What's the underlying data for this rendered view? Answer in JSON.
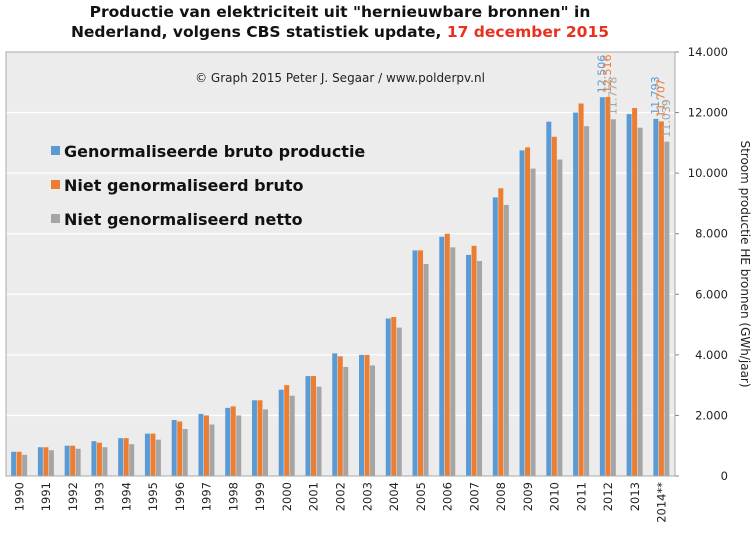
{
  "title": {
    "line1": "Productie van elektriciteit uit \"hernieuwbare bronnen\" in",
    "line2": "Nederland, volgens CBS statistiek update,",
    "date": "17 december 2015"
  },
  "credit": "© Graph 2015 Peter J. Segaar / www.polderpv.nl",
  "chart_data": {
    "type": "bar",
    "categories": [
      "1990",
      "1991",
      "1992",
      "1993",
      "1994",
      "1995",
      "1996",
      "1997",
      "1998",
      "1999",
      "2000",
      "2001",
      "2002",
      "2003",
      "2004",
      "2005",
      "2006",
      "2007",
      "2008",
      "2009",
      "2010",
      "2011",
      "2012",
      "2013",
      "2014**"
    ],
    "series": [
      {
        "name": "Genormaliseerde bruto productie",
        "color": "#5b9bd5",
        "values": [
          800,
          950,
          1000,
          1150,
          1250,
          1400,
          1850,
          2050,
          2250,
          2500,
          2850,
          3300,
          4050,
          4000,
          5200,
          7450,
          7900,
          7300,
          9200,
          10750,
          11700,
          12000,
          12506,
          11950,
          11793
        ]
      },
      {
        "name": "Niet genormaliseerd bruto",
        "color": "#ed7d31",
        "values": [
          800,
          950,
          1000,
          1100,
          1250,
          1400,
          1800,
          2000,
          2300,
          2500,
          3000,
          3300,
          3950,
          4000,
          5250,
          7450,
          8000,
          7600,
          9500,
          10850,
          11200,
          12300,
          12516,
          12150,
          11707
        ]
      },
      {
        "name": "Niet genormaliseerd netto",
        "color": "#a5a5a5",
        "values": [
          700,
          850,
          900,
          950,
          1050,
          1200,
          1550,
          1700,
          2000,
          2200,
          2650,
          2950,
          3600,
          3650,
          4900,
          7000,
          7550,
          7100,
          8950,
          10150,
          10450,
          11550,
          11778,
          11500,
          11039
        ]
      }
    ],
    "data_labels": [
      {
        "category": "2012",
        "series": 0,
        "text": "12.506"
      },
      {
        "category": "2012",
        "series": 1,
        "text": "12.516"
      },
      {
        "category": "2012",
        "series": 2,
        "text": "11.778"
      },
      {
        "category": "2014**",
        "series": 0,
        "text": "11.793"
      },
      {
        "category": "2014**",
        "series": 1,
        "text": "11.707"
      },
      {
        "category": "2014**",
        "series": 2,
        "text": "11.039"
      }
    ],
    "ylabel": "Stroom productie HE bronnen (GWh/jaar)",
    "ylim": [
      0,
      14000
    ],
    "yticks": [
      {
        "value": 0,
        "label": "0"
      },
      {
        "value": 2000,
        "label": "2.000"
      },
      {
        "value": 4000,
        "label": "4.000"
      },
      {
        "value": 6000,
        "label": "6.000"
      },
      {
        "value": 8000,
        "label": "8.000"
      },
      {
        "value": 10000,
        "label": "10.000"
      },
      {
        "value": 12000,
        "label": "12.000"
      },
      {
        "value": 14000,
        "label": "14.000"
      }
    ],
    "grid": true,
    "legend_position": "top-left",
    "background": "#ececec"
  }
}
